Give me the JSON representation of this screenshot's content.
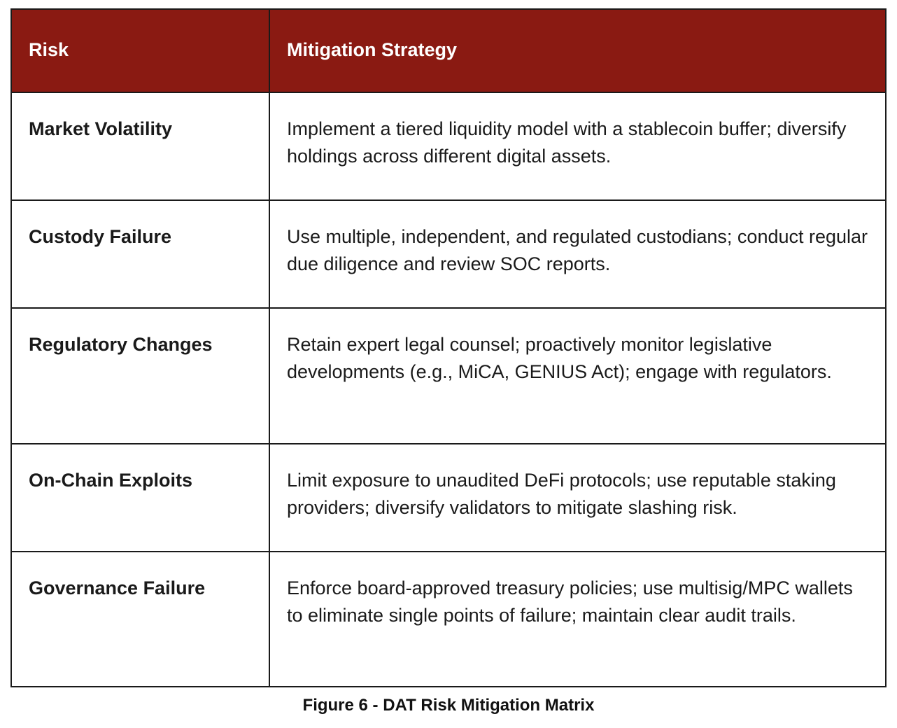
{
  "table": {
    "header": {
      "risk": "Risk",
      "strategy": "Mitigation Strategy"
    },
    "rows": [
      {
        "risk": "Market Volatility",
        "strategy": "Implement a tiered liquidity model with a stablecoin buffer; diversify holdings across different digital assets."
      },
      {
        "risk": "Custody Failure",
        "strategy": "Use multiple, independent, and regulated custodians; conduct regular due diligence and review SOC reports."
      },
      {
        "risk": "Regulatory Changes",
        "strategy": "Retain expert legal counsel; proactively monitor legislative developments (e.g., MiCA, GENIUS Act); engage with regulators."
      },
      {
        "risk": "On-Chain Exploits",
        "strategy": "Limit exposure to unaudited DeFi protocols; use reputable staking providers; diversify validators to mitigate slashing risk."
      },
      {
        "risk": "Governance Failure",
        "strategy": "Enforce board-approved treasury policies; use multisig/MPC wallets to eliminate single points of failure; maintain clear audit trails."
      }
    ]
  },
  "caption": "Figure 6 - DAT Risk Mitigation Matrix",
  "colors": {
    "header_background": "#8a1a12",
    "header_text": "#ffffff",
    "border": "#1a1a1a"
  }
}
